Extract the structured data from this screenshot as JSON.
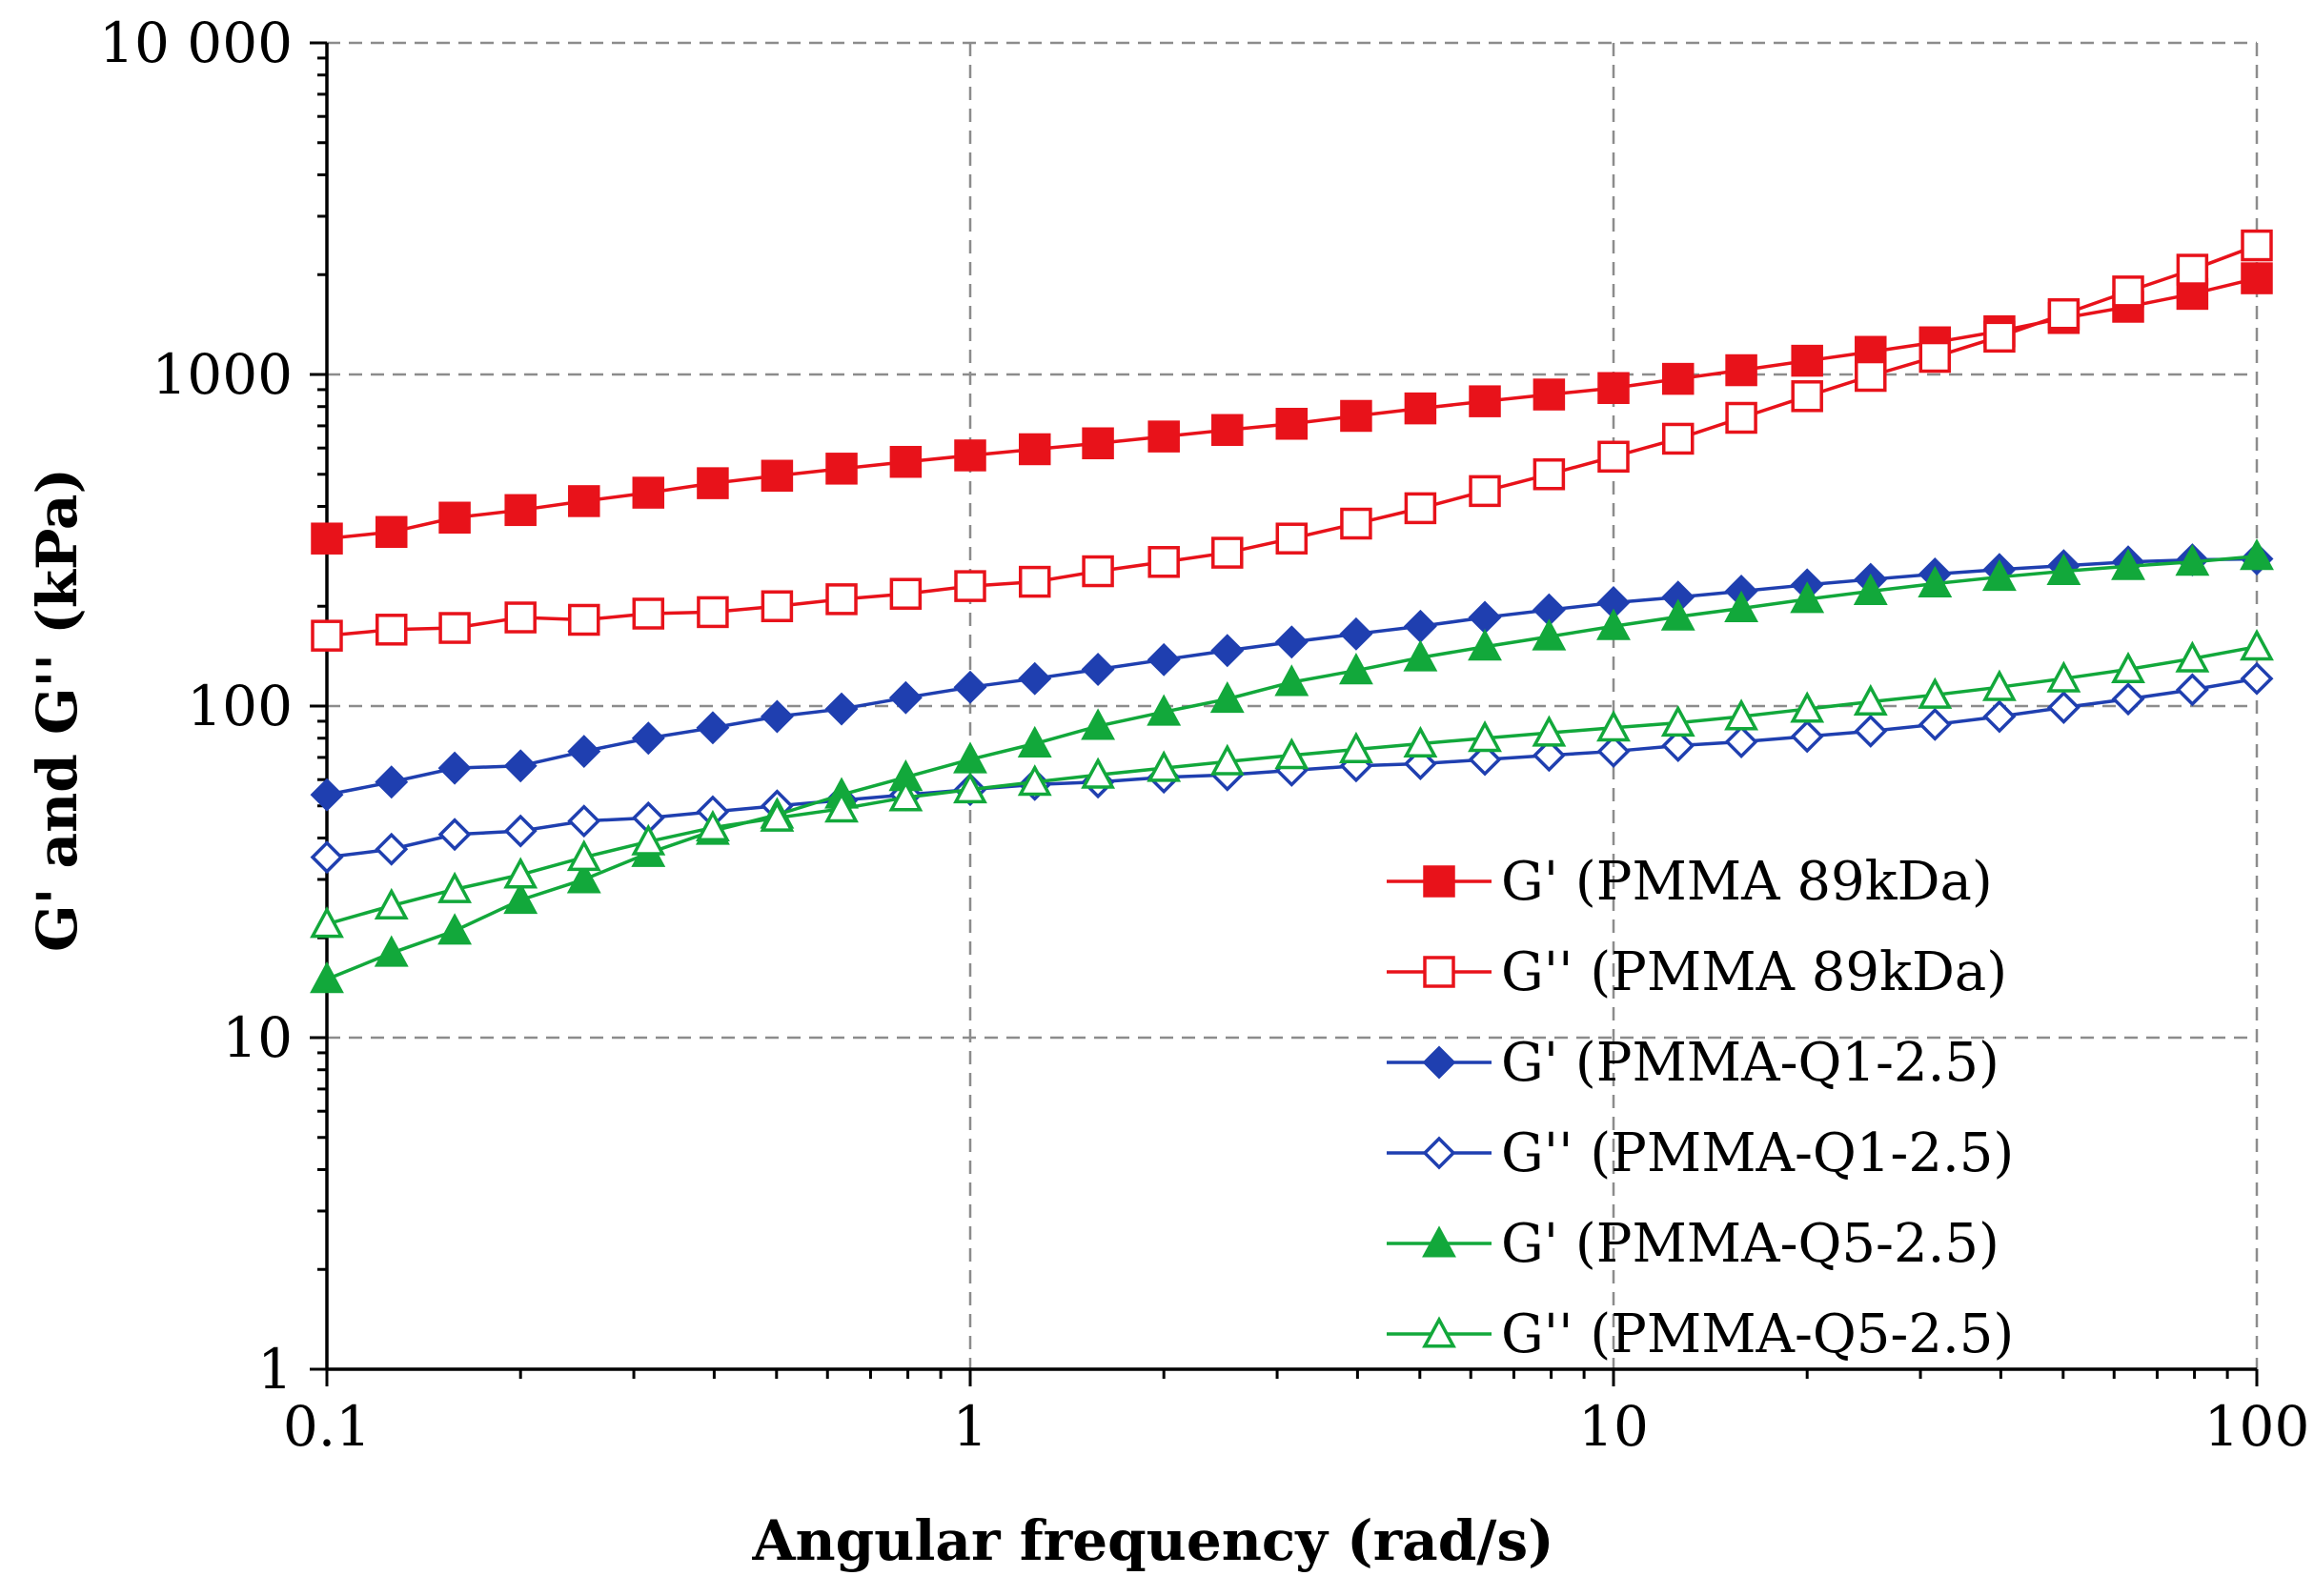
{
  "chart_data": {
    "type": "line",
    "title": "",
    "xlabel": "Angular frequency (rad/s)",
    "ylabel": "G' and G'' (kPa)",
    "xscale": "log",
    "yscale": "log",
    "xlim": [
      0.1,
      100
    ],
    "ylim": [
      1,
      10000
    ],
    "grid": true,
    "legend_position": "lower-right",
    "x_ticks": [
      {
        "value": 0.1,
        "label": "0.1"
      },
      {
        "value": 1,
        "label": "1"
      },
      {
        "value": 10,
        "label": "10"
      },
      {
        "value": 100,
        "label": "100"
      }
    ],
    "y_ticks": [
      {
        "value": 1,
        "label": "1"
      },
      {
        "value": 10,
        "label": "10"
      },
      {
        "value": 100,
        "label": "100"
      },
      {
        "value": 1000,
        "label": "1000"
      },
      {
        "value": 10000,
        "label": "10 000"
      }
    ],
    "x": [
      0.1,
      0.126,
      0.158,
      0.2,
      0.251,
      0.316,
      0.398,
      0.501,
      0.631,
      0.794,
      1,
      1.26,
      1.58,
      2,
      2.51,
      3.16,
      3.98,
      5.01,
      6.31,
      7.94,
      10,
      12.6,
      15.8,
      20,
      25.1,
      31.6,
      39.8,
      50.1,
      63.1,
      79.4,
      100
    ],
    "series": [
      {
        "name": "G' (PMMA 89kDa)",
        "color": "#e8121a",
        "marker": "square",
        "filled": true,
        "values": [
          320,
          335,
          370,
          390,
          415,
          440,
          470,
          495,
          520,
          545,
          570,
          595,
          620,
          650,
          680,
          710,
          750,
          790,
          830,
          870,
          910,
          970,
          1030,
          1100,
          1170,
          1250,
          1350,
          1480,
          1600,
          1750,
          1950
        ]
      },
      {
        "name": "G'' (PMMA 89kDa)",
        "color": "#e8121a",
        "marker": "square",
        "filled": false,
        "values": [
          163,
          170,
          172,
          185,
          182,
          190,
          192,
          200,
          210,
          218,
          230,
          237,
          255,
          272,
          290,
          320,
          355,
          395,
          445,
          500,
          565,
          640,
          740,
          860,
          990,
          1130,
          1300,
          1520,
          1780,
          2070,
          2450
        ]
      },
      {
        "name": "G' (PMMA-Q1-2.5)",
        "color": "#1f3fb0",
        "marker": "diamond",
        "filled": true,
        "values": [
          54,
          59,
          65,
          66,
          73,
          80,
          86,
          93,
          98,
          106,
          114,
          121,
          129,
          138,
          147,
          156,
          165,
          174,
          185,
          195,
          205,
          213,
          222,
          232,
          241,
          250,
          258,
          265,
          272,
          276,
          278
        ]
      },
      {
        "name": "G'' (PMMA-Q1-2.5)",
        "color": "#1f3fb0",
        "marker": "diamond",
        "filled": false,
        "values": [
          35,
          37,
          41,
          42,
          45,
          46,
          48,
          50,
          52,
          54,
          56,
          58,
          59,
          61,
          62,
          64,
          66,
          67,
          69,
          71,
          73,
          76,
          78,
          81,
          84,
          88,
          93,
          99,
          105,
          112,
          121
        ]
      },
      {
        "name": "G' (PMMA-Q5-2.5)",
        "color": "#12a83b",
        "marker": "triangle",
        "filled": true,
        "values": [
          15,
          18,
          21,
          26,
          30,
          36,
          42,
          47,
          54,
          61,
          69,
          77,
          87,
          96,
          105,
          118,
          128,
          140,
          151,
          162,
          174,
          186,
          197,
          210,
          222,
          234,
          245,
          255,
          264,
          272,
          283
        ]
      },
      {
        "name": "G'' (PMMA-Q5-2.5)",
        "color": "#12a83b",
        "marker": "triangle",
        "filled": false,
        "values": [
          22,
          25,
          28,
          31,
          35,
          39,
          43,
          46,
          49,
          53,
          56,
          59,
          62,
          65,
          68,
          71,
          74,
          77,
          80,
          83,
          86,
          89,
          93,
          98,
          103,
          108,
          114,
          121,
          129,
          139,
          151
        ]
      }
    ]
  }
}
